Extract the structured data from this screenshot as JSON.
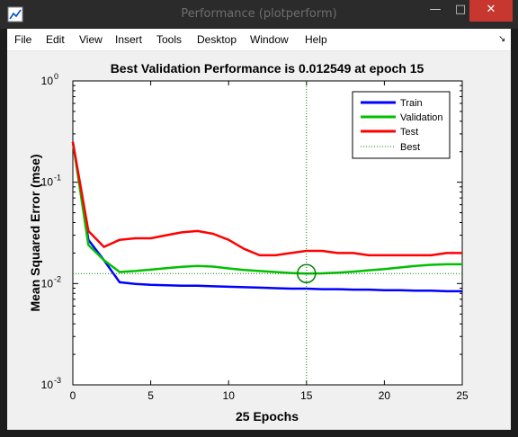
{
  "window": {
    "title": "Performance (plotperform)",
    "icon": "matlab-figure-icon",
    "controls": {
      "minimize": "—",
      "maximize": "□",
      "close": "✕"
    }
  },
  "menu": {
    "items": [
      "File",
      "Edit",
      "View",
      "Insert",
      "Tools",
      "Desktop",
      "Window",
      "Help"
    ],
    "dock_icon": "dock-arrow-icon",
    "dock_glyph": "↘"
  },
  "colors": {
    "train": "#0000ff",
    "validation": "#00c000",
    "test": "#ff0000",
    "best": "#008000",
    "background": "#f0f0f0"
  },
  "chart_data": {
    "type": "line",
    "title": "Best Validation Performance is 0.012549 at epoch 15",
    "xlabel": "25 Epochs",
    "ylabel": "Mean Squared Error  (mse)",
    "xlim": [
      0,
      25
    ],
    "ylim": [
      0.001,
      1
    ],
    "yscale": "log",
    "grid": false,
    "legend_position": "top-right",
    "x_ticks": [
      "0",
      "5",
      "10",
      "15",
      "20",
      "25"
    ],
    "y_ticks": [
      {
        "base": "10",
        "exp": "0"
      },
      {
        "base": "10",
        "exp": "-1"
      },
      {
        "base": "10",
        "exp": "-2"
      },
      {
        "base": "10",
        "exp": "-3"
      }
    ],
    "x": [
      0,
      1,
      2,
      3,
      4,
      5,
      6,
      7,
      8,
      9,
      10,
      11,
      12,
      13,
      14,
      15,
      16,
      17,
      18,
      19,
      20,
      21,
      22,
      23,
      24,
      25
    ],
    "series": [
      {
        "name": "Train",
        "color": "#0000ff",
        "values": [
          0.25,
          0.027,
          0.017,
          0.0103,
          0.0099,
          0.0097,
          0.0096,
          0.0095,
          0.0095,
          0.0094,
          0.0093,
          0.0092,
          0.0091,
          0.009,
          0.0089,
          0.0089,
          0.0088,
          0.0088,
          0.0087,
          0.0087,
          0.0086,
          0.0086,
          0.0085,
          0.0085,
          0.0084,
          0.0084
        ]
      },
      {
        "name": "Validation",
        "color": "#00c000",
        "values": [
          0.25,
          0.024,
          0.017,
          0.013,
          0.0133,
          0.0137,
          0.0142,
          0.0146,
          0.0149,
          0.0147,
          0.0141,
          0.0136,
          0.0133,
          0.013,
          0.0127,
          0.012549,
          0.0126,
          0.0128,
          0.0131,
          0.0135,
          0.0139,
          0.0144,
          0.0149,
          0.0153,
          0.0155,
          0.0155
        ]
      },
      {
        "name": "Test",
        "color": "#ff0000",
        "values": [
          0.25,
          0.033,
          0.023,
          0.027,
          0.028,
          0.028,
          0.03,
          0.032,
          0.033,
          0.031,
          0.027,
          0.022,
          0.019,
          0.019,
          0.02,
          0.021,
          0.021,
          0.02,
          0.02,
          0.019,
          0.019,
          0.019,
          0.019,
          0.019,
          0.02,
          0.02
        ]
      }
    ],
    "best": {
      "name": "Best",
      "epoch": 15,
      "value": 0.012549,
      "color": "#008000"
    }
  }
}
